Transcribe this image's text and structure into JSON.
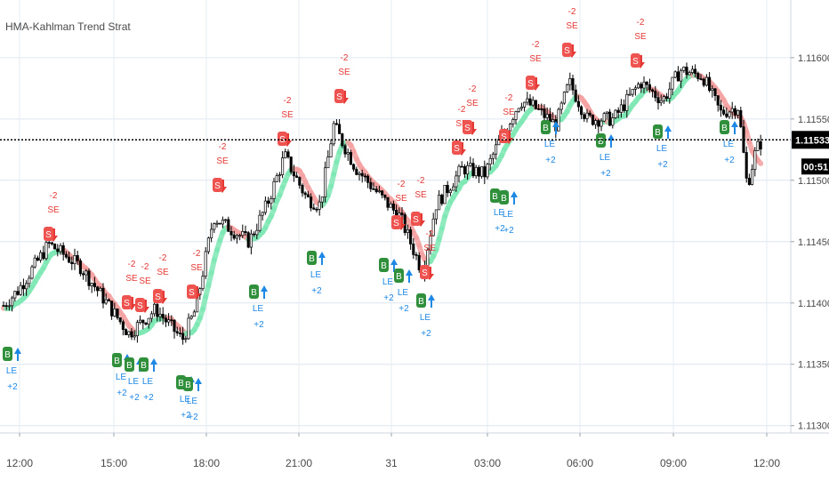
{
  "chart_data": {
    "type": "candlestick",
    "title": "HMA-Kahlman Trend Strat",
    "y_ticks": [
      "1.11600",
      "1.11550",
      "1.11500",
      "1.11450",
      "1.11400",
      "1.11350",
      "1.11300"
    ],
    "y_tick_values": [
      1.116,
      1.1155,
      1.115,
      1.1145,
      1.114,
      1.1135,
      1.113
    ],
    "ylim": [
      1.11294,
      1.11647
    ],
    "x_ticks": [
      "12:00",
      "15:00",
      "18:00",
      "21:00",
      "31",
      "03:00",
      "06:00",
      "09:00",
      "12:00"
    ],
    "current_price": "1.11533",
    "current_price_value": 1.11533,
    "countdown": "00:51",
    "grid": true,
    "colors": {
      "up_candle": "#000000",
      "down_candle": "#000000",
      "band_bull": "#7ee8b4",
      "band_bear": "#f4a0a0",
      "long_signal": "#2f8f3a",
      "short_signal": "#ef5350",
      "long_arrow": "#1e88e5",
      "short_arrow": "#e53935",
      "price_line": "#000000"
    },
    "short_entries": [
      {
        "label": "S",
        "signal": "SE",
        "qty": "-2"
      },
      {
        "label": "S",
        "signal": "SE",
        "qty": "-2"
      },
      {
        "label": "S",
        "signal": "SE",
        "qty": "-2"
      },
      {
        "label": "S",
        "signal": "SE",
        "qty": "-2"
      },
      {
        "label": "S",
        "signal": "SE",
        "qty": "-2"
      },
      {
        "label": "S",
        "signal": "SE",
        "qty": "-2"
      },
      {
        "label": "S",
        "signal": "SE",
        "qty": "-2"
      },
      {
        "label": "S",
        "signal": "SE",
        "qty": "-2"
      },
      {
        "label": "S",
        "signal": "SE",
        "qty": "-2"
      },
      {
        "label": "S",
        "signal": "SE",
        "qty": "-2"
      },
      {
        "label": "S",
        "signal": "SE",
        "qty": "-2"
      },
      {
        "label": "S",
        "signal": "SE",
        "qty": "-2"
      },
      {
        "label": "S",
        "signal": "SE",
        "qty": "-2"
      },
      {
        "label": "S",
        "signal": "SE",
        "qty": "-2"
      },
      {
        "label": "S",
        "signal": "SE",
        "qty": "-2"
      },
      {
        "label": "S",
        "signal": "SE",
        "qty": "-2"
      },
      {
        "label": "S",
        "signal": "SE",
        "qty": "-2"
      }
    ],
    "long_entries": [
      {
        "label": "B",
        "signal": "LE",
        "qty": "+2"
      },
      {
        "label": "B",
        "signal": "LE",
        "qty": "+2"
      },
      {
        "label": "B",
        "signal": "LE",
        "qty": "+2"
      },
      {
        "label": "B",
        "signal": "LE",
        "qty": "+2"
      },
      {
        "label": "B",
        "signal": "LE",
        "qty": "+2"
      },
      {
        "label": "B",
        "signal": "LE",
        "qty": "+2"
      },
      {
        "label": "B",
        "signal": "LE",
        "qty": "+2"
      },
      {
        "label": "B",
        "signal": "LE",
        "qty": "+2"
      },
      {
        "label": "B",
        "signal": "LE",
        "qty": "+2"
      },
      {
        "label": "B",
        "signal": "LE",
        "qty": "+2"
      },
      {
        "label": "B",
        "signal": "LE",
        "qty": "+2"
      },
      {
        "label": "B",
        "signal": "LE",
        "qty": "+2"
      },
      {
        "label": "B",
        "signal": "LE",
        "qty": "+2"
      },
      {
        "label": "B",
        "signal": "LE",
        "qty": "+2"
      },
      {
        "label": "B",
        "signal": "LE",
        "qty": "+2"
      },
      {
        "label": "B",
        "signal": "LE",
        "qty": "+2"
      },
      {
        "label": "B",
        "signal": "LE",
        "qty": "+2"
      }
    ]
  }
}
